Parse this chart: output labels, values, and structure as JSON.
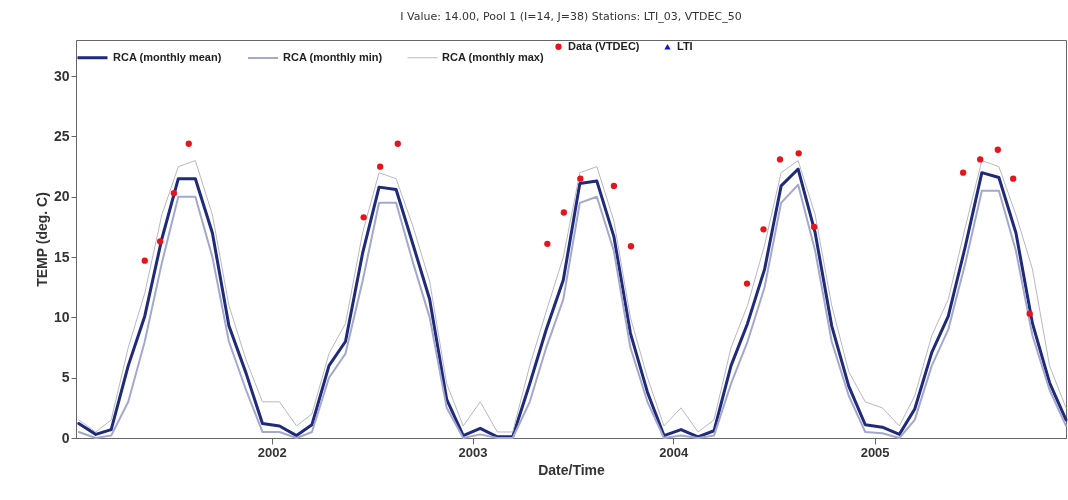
{
  "chart_data": {
    "type": "line",
    "title": "I Value: 14.00, Pool 1 (I=14, J=38)     Stations: LTI_03, VTDEC_50",
    "xlabel": "Date/Time",
    "ylabel": "TEMP (deg. C)",
    "x": [
      "2001-01-15",
      "2001-02-15",
      "2001-03-15",
      "2001-04-15",
      "2001-05-15",
      "2001-06-15",
      "2001-07-15",
      "2001-08-15",
      "2001-09-15",
      "2001-10-15",
      "2001-11-15",
      "2001-12-15",
      "2002-01-15",
      "2002-02-15",
      "2002-03-15",
      "2002-04-15",
      "2002-05-15",
      "2002-06-15",
      "2002-07-15",
      "2002-08-15",
      "2002-09-15",
      "2002-10-15",
      "2002-11-15",
      "2002-12-15",
      "2003-01-15",
      "2003-02-15",
      "2003-03-15",
      "2003-04-15",
      "2003-05-15",
      "2003-06-15",
      "2003-07-15",
      "2003-08-15",
      "2003-09-15",
      "2003-10-15",
      "2003-11-15",
      "2003-12-15",
      "2004-01-15",
      "2004-02-15",
      "2004-03-15",
      "2004-04-15",
      "2004-05-15",
      "2004-06-15",
      "2004-07-15",
      "2004-08-15",
      "2004-09-15",
      "2004-10-15",
      "2004-11-15",
      "2004-12-15",
      "2005-01-15",
      "2005-02-15",
      "2005-03-15",
      "2005-04-15",
      "2005-05-15",
      "2005-06-15",
      "2005-07-15",
      "2005-08-15",
      "2005-09-15",
      "2005-10-15",
      "2005-11-15",
      "2005-12-15"
    ],
    "series": [
      {
        "name": "RCA (monthly mean)",
        "color": "#1f2a7a",
        "values": [
          1.2,
          0.3,
          0.7,
          6.0,
          10.1,
          16.5,
          21.5,
          21.5,
          17.0,
          9.3,
          5.4,
          1.2,
          1.0,
          0.2,
          1.1,
          6.0,
          8.0,
          15.3,
          20.8,
          20.6,
          16.0,
          11.5,
          3.2,
          0.2,
          0.8,
          0.1,
          0.1,
          4.5,
          9.0,
          13.1,
          21.1,
          21.3,
          16.7,
          8.7,
          3.8,
          0.2,
          0.7,
          0.1,
          0.6,
          6.0,
          9.5,
          14.0,
          20.9,
          22.3,
          17.0,
          9.3,
          4.3,
          1.1,
          0.9,
          0.3,
          2.4,
          7.1,
          10.1,
          15.9,
          22.0,
          21.6,
          17.0,
          9.5,
          4.6,
          1.5
        ]
      },
      {
        "name": "RCA (monthly min)",
        "color": "#a3a8cc",
        "values": [
          0.5,
          0.0,
          0.2,
          3.0,
          8.0,
          14.5,
          20.0,
          20.0,
          15.0,
          8.0,
          4.0,
          0.5,
          0.5,
          0.0,
          0.5,
          5.0,
          7.0,
          13.0,
          19.5,
          19.5,
          14.5,
          10.0,
          2.5,
          0.0,
          0.3,
          0.0,
          0.0,
          3.0,
          7.5,
          11.5,
          19.5,
          20.0,
          15.5,
          7.5,
          3.0,
          0.0,
          0.2,
          0.0,
          0.2,
          4.5,
          8.0,
          12.5,
          19.5,
          21.0,
          15.5,
          8.0,
          3.5,
          0.5,
          0.4,
          0.0,
          1.5,
          6.0,
          9.0,
          14.5,
          20.5,
          20.5,
          15.5,
          8.5,
          4.0,
          1.0
        ]
      },
      {
        "name": "RCA (monthly max)",
        "color": "#b8b8c4",
        "values": [
          1.5,
          0.5,
          1.5,
          7.5,
          12.0,
          18.5,
          22.5,
          23.0,
          18.5,
          11.0,
          6.5,
          3.0,
          3.0,
          1.0,
          2.0,
          7.0,
          9.5,
          17.0,
          22.0,
          21.5,
          17.5,
          13.0,
          4.5,
          1.0,
          3.0,
          0.5,
          0.5,
          6.0,
          10.5,
          15.0,
          22.0,
          22.5,
          18.0,
          10.0,
          5.0,
          1.0,
          2.5,
          0.5,
          1.5,
          7.5,
          11.0,
          16.0,
          22.0,
          23.0,
          18.5,
          11.0,
          5.5,
          3.0,
          2.5,
          1.0,
          3.5,
          8.5,
          11.5,
          17.5,
          23.0,
          22.5,
          18.5,
          14.0,
          6.0,
          2.5
        ]
      },
      {
        "name": "Data (VTDEC)",
        "type": "scatter",
        "marker": "circle",
        "color": "#e8141c",
        "x": [
          "2001-05-15",
          "2001-06-12",
          "2001-07-07",
          "2001-08-03",
          "2002-06-17",
          "2002-07-17",
          "2002-08-18",
          "2003-05-17",
          "2003-06-16",
          "2003-07-16",
          "2003-09-15",
          "2003-10-16",
          "2004-05-14",
          "2004-06-13",
          "2004-07-13",
          "2004-08-16",
          "2004-09-13",
          "2005-06-11",
          "2005-07-12",
          "2005-08-13",
          "2005-09-10",
          "2005-10-10"
        ],
        "values": [
          14.7,
          16.3,
          20.3,
          24.4,
          18.3,
          22.5,
          24.4,
          16.1,
          18.7,
          21.5,
          20.9,
          15.9,
          12.8,
          17.3,
          23.1,
          23.6,
          17.5,
          22.0,
          23.1,
          23.9,
          21.5,
          10.3
        ]
      },
      {
        "name": "LTI",
        "type": "scatter",
        "marker": "triangle",
        "color": "#1414d2",
        "values": [
          null,
          null,
          null,
          null,
          null,
          null,
          null,
          null,
          null,
          null,
          null,
          null,
          null,
          null,
          null,
          null,
          null,
          null,
          null,
          null,
          null,
          null,
          null,
          null,
          null,
          null,
          null,
          null,
          null,
          null,
          null,
          null,
          null,
          null,
          null,
          null,
          null,
          null,
          null,
          null,
          null,
          null,
          null,
          null,
          null,
          null,
          null,
          null,
          null,
          null,
          null,
          null,
          null,
          null,
          null,
          null,
          null,
          null,
          null,
          null
        ]
      }
    ],
    "xlim": [
      "2001-01-10",
      "2005-12-15"
    ],
    "xticks": [
      "2002",
      "2003",
      "2004",
      "2005"
    ],
    "ylim": [
      0,
      33
    ],
    "yticks": [
      0,
      5,
      10,
      15,
      20,
      25,
      30
    ],
    "legend": "top",
    "grid": false,
    "line_style": "solid"
  }
}
